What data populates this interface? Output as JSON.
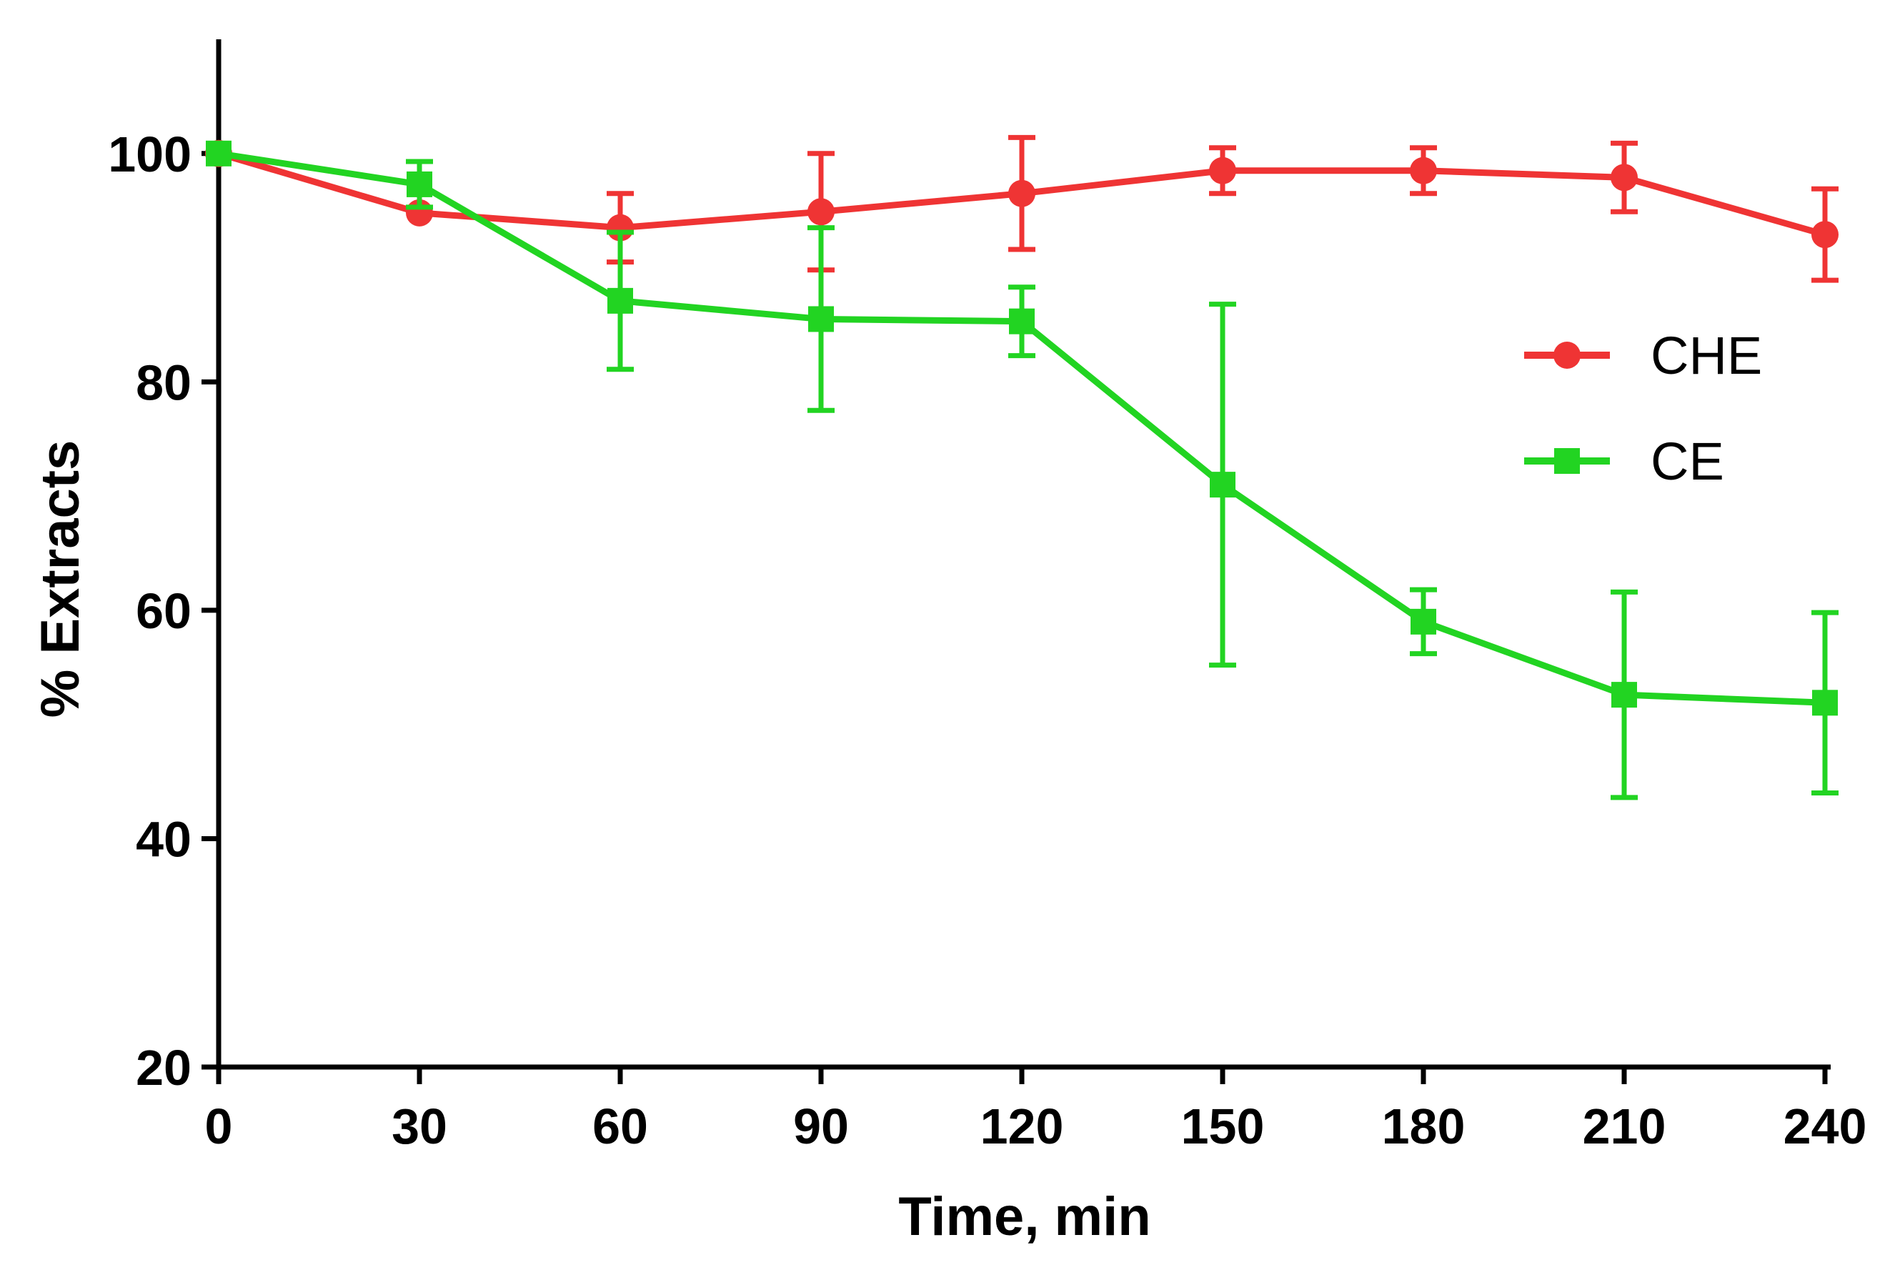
{
  "chart_data": {
    "type": "line",
    "title": "",
    "xlabel": "Time, min",
    "ylabel": "% Extracts",
    "x": [
      0,
      30,
      60,
      90,
      120,
      150,
      180,
      210,
      240
    ],
    "xlim": [
      0,
      240
    ],
    "ylim": [
      20,
      110
    ],
    "x_ticks": [
      "0",
      "30",
      "60",
      "90",
      "120",
      "150",
      "180",
      "210",
      "240"
    ],
    "y_ticks": [
      "20",
      "40",
      "60",
      "80",
      "100"
    ],
    "grid": false,
    "legend_position": "right",
    "series": [
      {
        "name": "CHE",
        "marker": "circle",
        "color": "#ef3434",
        "values": [
          100,
          94.8,
          93.5,
          94.9,
          96.5,
          98.5,
          98.5,
          97.9,
          92.9
        ],
        "errors": [
          0,
          0,
          3.0,
          5.1,
          4.9,
          2.0,
          2.0,
          3.0,
          4.0
        ]
      },
      {
        "name": "CE",
        "marker": "square",
        "color": "#22d422",
        "values": [
          100,
          97.3,
          87.1,
          85.5,
          85.3,
          71.0,
          59.0,
          52.6,
          51.9
        ],
        "errors": [
          0,
          2.0,
          6.0,
          8.0,
          3.0,
          15.8,
          2.8,
          9.0,
          7.9
        ]
      }
    ]
  }
}
